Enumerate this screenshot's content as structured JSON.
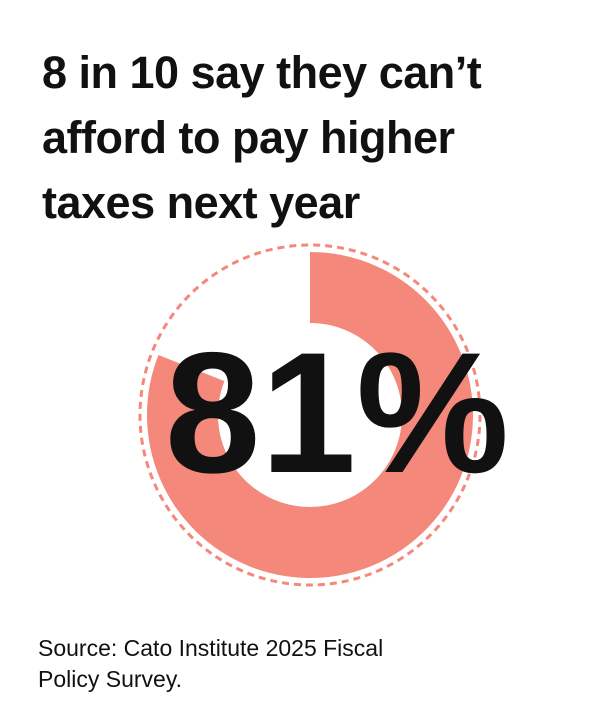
{
  "title_lines": [
    "8 in 10 say they can’t",
    "afford to pay higher",
    "taxes next year"
  ],
  "chart_data": {
    "type": "pie",
    "categories": [
      "Can't afford to pay higher taxes"
    ],
    "values": [
      81
    ],
    "value_label": "81%",
    "max": 100,
    "style": "donut"
  },
  "colors": {
    "fill": "#f4887a",
    "dashed_outline": "#f4887a",
    "text": "#111111"
  },
  "source_lines": [
    "Source: Cato Institute 2025 Fiscal",
    "Policy Survey."
  ]
}
